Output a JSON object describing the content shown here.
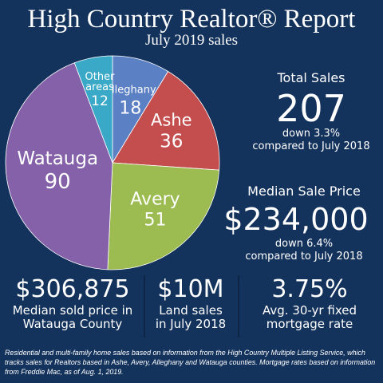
{
  "header": {
    "title": "High Country Realtor® Report",
    "subtitle": "July 2019 sales"
  },
  "chart_data": {
    "type": "pie",
    "slices": [
      {
        "label": "Alleghany",
        "value": 18,
        "color": "#5b80c4"
      },
      {
        "label": "Ashe",
        "value": 36,
        "color": "#c44e4e"
      },
      {
        "label": "Avery",
        "value": 51,
        "color": "#9cbb51"
      },
      {
        "label": "Watauga",
        "value": 90,
        "color": "#8461a8"
      },
      {
        "label": "Other areas",
        "value": 12,
        "color": "#3aa8c7"
      }
    ],
    "total": 207
  },
  "stats": {
    "total_sales": {
      "label": "Total Sales",
      "value": "207",
      "change": "down 3.3%",
      "compare": "compared to July 2018"
    },
    "median_price": {
      "label": "Median Sale Price",
      "value": "$234,000",
      "change": "down 6.4%",
      "compare": "compared to July 2018"
    }
  },
  "bottom": [
    {
      "value": "$306,875",
      "line1": "Median sold price in",
      "line2": "Watauga County"
    },
    {
      "value": "$10M",
      "line1": "Land sales",
      "line2": "in July 2018"
    },
    {
      "value": "3.75%",
      "line1": "Avg. 30-yr fixed",
      "line2": "mortgage rate"
    }
  ],
  "footnote": "Residential and multi-family home sales based on information from the High Country Multiple Listing Service, which tracks sales for Realtors based in Ashe, Avery, Alleghany and Watauga counties. Mortgage rates based on information from Freddie Mac, as of Aug. 1, 2019."
}
